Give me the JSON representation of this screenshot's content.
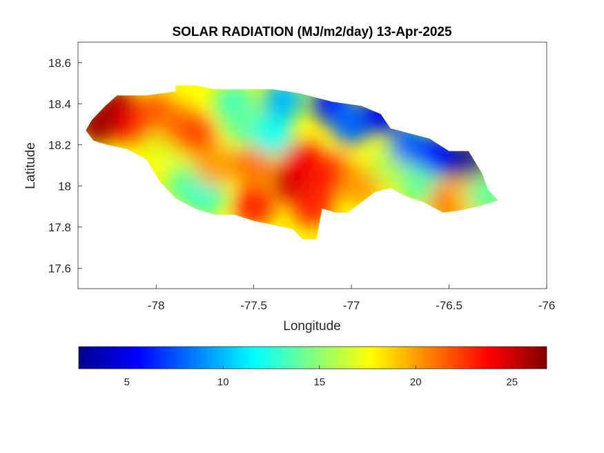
{
  "chart_data": {
    "type": "heatmap",
    "title": "SOLAR RADIATION (MJ/m2/day) 13-Apr-2025",
    "xlabel": "Longitude",
    "ylabel": "Latitude",
    "xlim": [
      -78.4,
      -76
    ],
    "ylim": [
      17.5,
      18.7
    ],
    "x_ticks": [
      -78,
      -77.5,
      -77,
      -76.5,
      -76
    ],
    "x_tick_labels": [
      "-78",
      "-77.5",
      "-77",
      "-76.5",
      "-76"
    ],
    "y_ticks": [
      17.6,
      17.8,
      18.0,
      18.2,
      18.4,
      18.6
    ],
    "y_tick_labels": [
      "17.6",
      "17.8",
      "18",
      "18.2",
      "18.4",
      "18.6"
    ],
    "grid": false,
    "colormap": "jet",
    "colorbar": {
      "orientation": "horizontal",
      "placement": "bottom",
      "range": [
        2.5,
        26.8
      ],
      "ticks": [
        5,
        10,
        15,
        20,
        25
      ],
      "tick_labels": [
        "5",
        "10",
        "15",
        "20",
        "25"
      ]
    },
    "region": "Jamaica",
    "coastline": [
      [
        -78.36,
        18.27
      ],
      [
        -78.33,
        18.32
      ],
      [
        -78.26,
        18.39
      ],
      [
        -78.2,
        18.44
      ],
      [
        -78.05,
        18.44
      ],
      [
        -77.9,
        18.46
      ],
      [
        -77.9,
        18.49
      ],
      [
        -77.8,
        18.49
      ],
      [
        -77.7,
        18.47
      ],
      [
        -77.6,
        18.47
      ],
      [
        -77.4,
        18.47
      ],
      [
        -77.26,
        18.45
      ],
      [
        -77.1,
        18.41
      ],
      [
        -76.95,
        18.39
      ],
      [
        -76.85,
        18.35
      ],
      [
        -76.8,
        18.28
      ],
      [
        -76.72,
        18.26
      ],
      [
        -76.6,
        18.23
      ],
      [
        -76.5,
        18.17
      ],
      [
        -76.4,
        18.17
      ],
      [
        -76.33,
        18.06
      ],
      [
        -76.3,
        17.98
      ],
      [
        -76.25,
        17.93
      ],
      [
        -76.35,
        17.9
      ],
      [
        -76.45,
        17.88
      ],
      [
        -76.53,
        17.87
      ],
      [
        -76.63,
        17.92
      ],
      [
        -76.72,
        17.95
      ],
      [
        -76.8,
        17.99
      ],
      [
        -76.88,
        17.97
      ],
      [
        -76.95,
        17.92
      ],
      [
        -77.02,
        17.87
      ],
      [
        -77.08,
        17.87
      ],
      [
        -77.15,
        17.89
      ],
      [
        -77.17,
        17.79
      ],
      [
        -77.18,
        17.74
      ],
      [
        -77.25,
        17.74
      ],
      [
        -77.3,
        17.79
      ],
      [
        -77.4,
        17.81
      ],
      [
        -77.5,
        17.83
      ],
      [
        -77.6,
        17.86
      ],
      [
        -77.7,
        17.86
      ],
      [
        -77.8,
        17.89
      ],
      [
        -77.9,
        17.94
      ],
      [
        -77.98,
        18.02
      ],
      [
        -78.05,
        18.13
      ],
      [
        -78.15,
        18.18
      ],
      [
        -78.25,
        18.2
      ],
      [
        -78.32,
        18.22
      ],
      [
        -78.36,
        18.27
      ]
    ],
    "values": [
      {
        "lon": -78.3,
        "lat": 18.3,
        "value": 26
      },
      {
        "lon": -78.2,
        "lat": 18.38,
        "value": 26
      },
      {
        "lon": -78.1,
        "lat": 18.3,
        "value": 24
      },
      {
        "lon": -78.0,
        "lat": 18.35,
        "value": 22
      },
      {
        "lon": -77.95,
        "lat": 18.2,
        "value": 17
      },
      {
        "lon": -77.9,
        "lat": 18.3,
        "value": 21
      },
      {
        "lon": -77.8,
        "lat": 18.25,
        "value": 22
      },
      {
        "lon": -77.85,
        "lat": 18.0,
        "value": 14
      },
      {
        "lon": -77.75,
        "lat": 17.95,
        "value": 13
      },
      {
        "lon": -77.7,
        "lat": 18.1,
        "value": 20
      },
      {
        "lon": -77.6,
        "lat": 18.4,
        "value": 13
      },
      {
        "lon": -77.55,
        "lat": 18.3,
        "value": 14
      },
      {
        "lon": -77.5,
        "lat": 18.1,
        "value": 21
      },
      {
        "lon": -77.5,
        "lat": 17.9,
        "value": 23
      },
      {
        "lon": -77.4,
        "lat": 18.25,
        "value": 12
      },
      {
        "lon": -77.35,
        "lat": 18.42,
        "value": 10
      },
      {
        "lon": -77.3,
        "lat": 18.02,
        "value": 25
      },
      {
        "lon": -77.25,
        "lat": 18.12,
        "value": 24
      },
      {
        "lon": -77.2,
        "lat": 17.9,
        "value": 23
      },
      {
        "lon": -77.1,
        "lat": 18.4,
        "value": 6
      },
      {
        "lon": -77.1,
        "lat": 18.05,
        "value": 23
      },
      {
        "lon": -77.0,
        "lat": 18.3,
        "value": 8
      },
      {
        "lon": -76.95,
        "lat": 18.0,
        "value": 20
      },
      {
        "lon": -76.85,
        "lat": 18.35,
        "value": 5
      },
      {
        "lon": -76.8,
        "lat": 18.1,
        "value": 16
      },
      {
        "lon": -76.7,
        "lat": 18.2,
        "value": 8
      },
      {
        "lon": -76.65,
        "lat": 18.0,
        "value": 14
      },
      {
        "lon": -76.55,
        "lat": 18.15,
        "value": 6
      },
      {
        "lon": -76.5,
        "lat": 17.92,
        "value": 21
      },
      {
        "lon": -76.4,
        "lat": 18.1,
        "value": 3
      },
      {
        "lon": -76.38,
        "lat": 17.95,
        "value": 19
      },
      {
        "lon": -76.3,
        "lat": 17.95,
        "value": 14
      }
    ]
  }
}
